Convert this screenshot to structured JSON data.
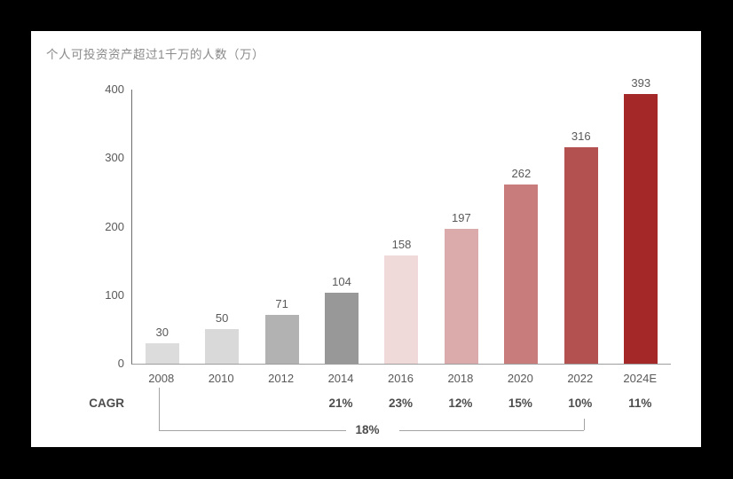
{
  "canvas": {
    "background": "#000000",
    "card_background": "#ffffff"
  },
  "chart_data": {
    "type": "bar",
    "title": "个人可投资资产超过1千万的人数（万）",
    "title_color": "#8a8a8a",
    "categories": [
      "2008",
      "2010",
      "2012",
      "2014",
      "2016",
      "2018",
      "2020",
      "2022",
      "2024E"
    ],
    "values": [
      30,
      50,
      71,
      104,
      158,
      197,
      262,
      316,
      393
    ],
    "bar_colors": [
      "#dcdcdc",
      "#d9d9d9",
      "#b2b2b2",
      "#989898",
      "#f0d9d9",
      "#dbaaaa",
      "#c87c7c",
      "#b35050",
      "#a52828"
    ],
    "value_label_color": "#595959",
    "tick_label_color": "#595959",
    "ylim": [
      0,
      400
    ],
    "yticks": [
      0,
      100,
      200,
      300,
      400
    ],
    "grid": false,
    "legend_position": "none",
    "cagr": {
      "row_label": "CAGR",
      "values_by_category": [
        "",
        "",
        "",
        "21%",
        "23%",
        "12%",
        "15%",
        "10%",
        "11%"
      ],
      "overall_label": "18%",
      "overall_span": [
        "2008",
        "2022"
      ]
    }
  }
}
